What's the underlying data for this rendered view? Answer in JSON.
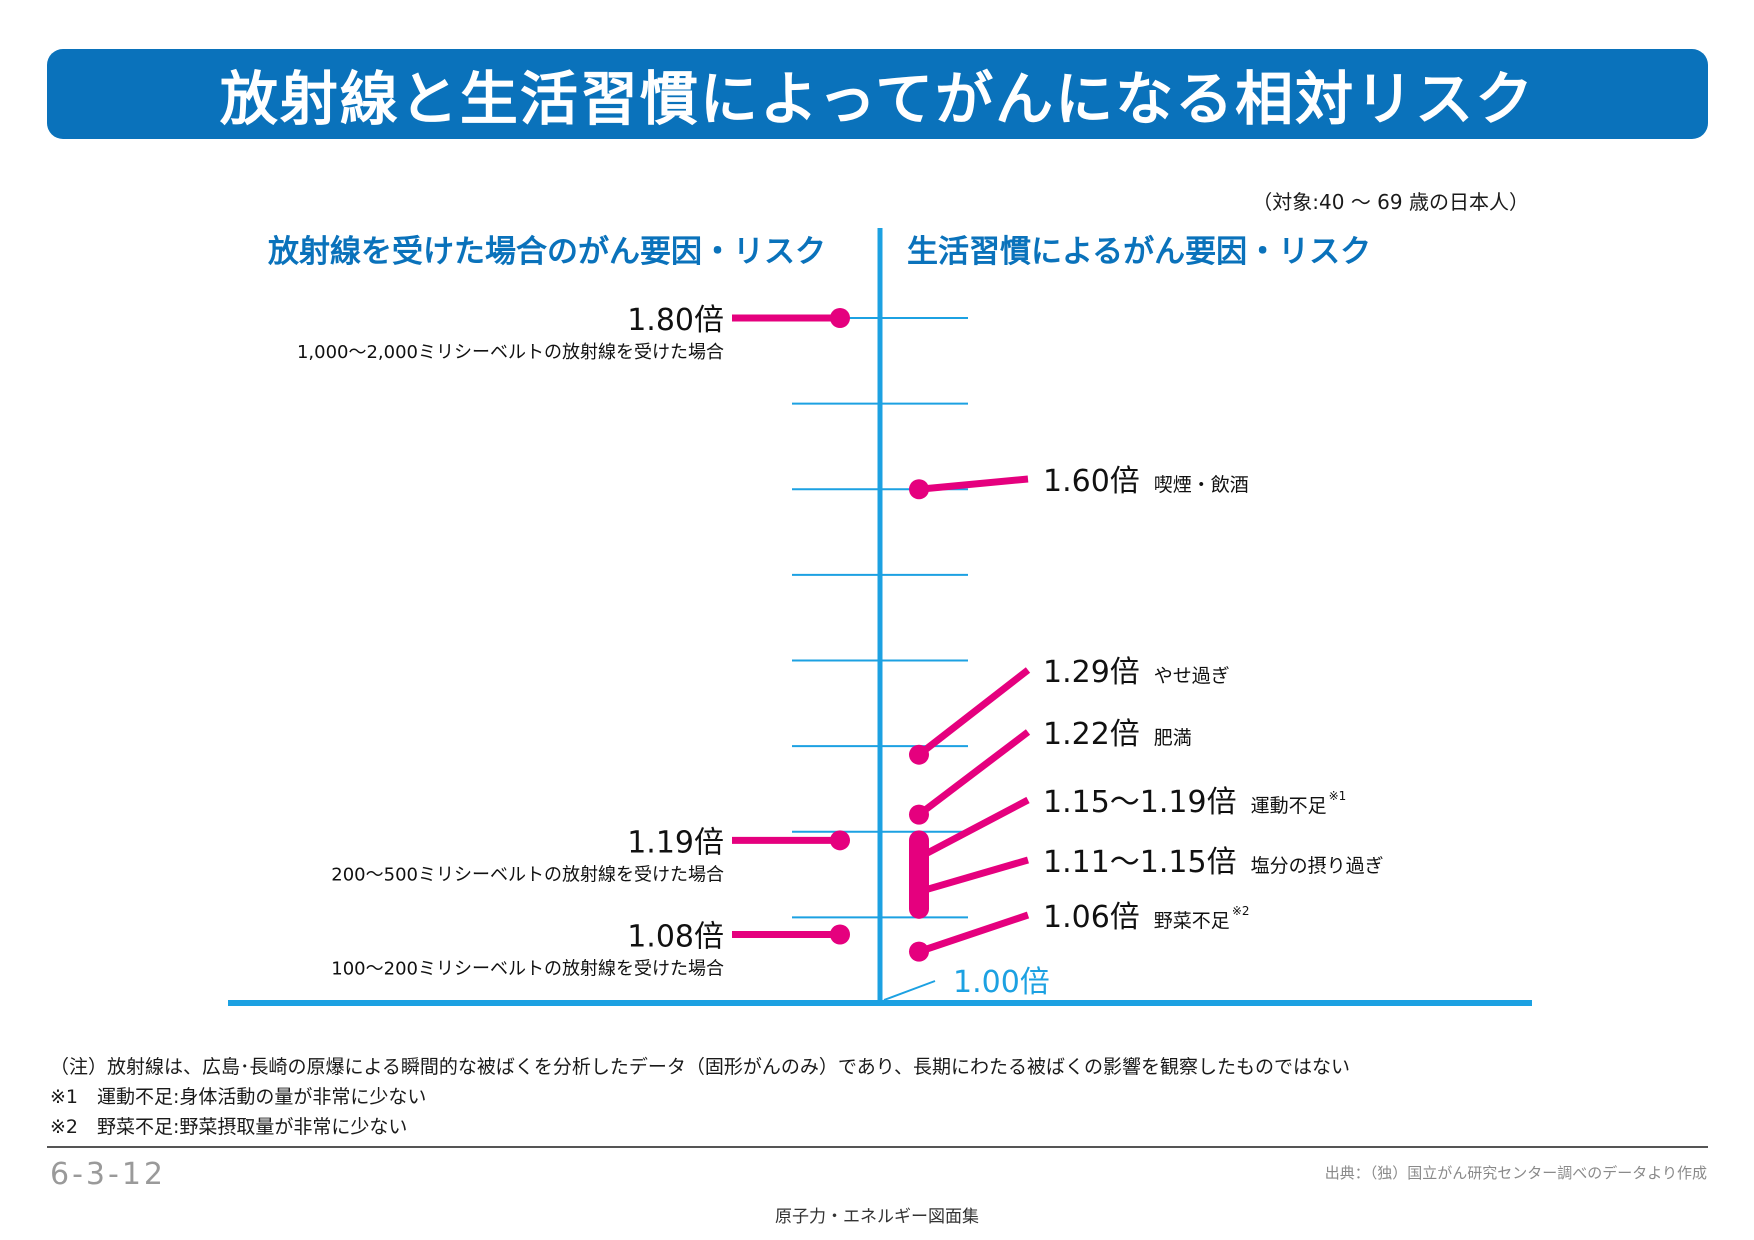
{
  "title": "放射線と生活習慣によってがんになる相対リスク",
  "subject_note": "（対象:40 ～ 69 歳の日本人）",
  "left_heading": "放射線を受けた場合のがん要因・リスク",
  "right_heading": "生活習慣によるがん要因・リスク",
  "colors": {
    "banner": "#0a72bb",
    "heading": "#0a72bb",
    "axis": "#1ca1e2",
    "marker": "#e5007e"
  },
  "chart_data": {
    "type": "lollipop",
    "baseline": {
      "value": 1.0,
      "label": "1.00倍"
    },
    "y_range": [
      1.0,
      1.8
    ],
    "grid_values": [
      1.1,
      1.2,
      1.3,
      1.4,
      1.5,
      1.6,
      1.7,
      1.8
    ],
    "radiation": [
      {
        "value": 1.8,
        "value_label": "1.80倍",
        "description": "1,000～2,000ミリシーベルトの放射線を受けた場合"
      },
      {
        "value": 1.19,
        "value_label": "1.19倍",
        "description": "200～500ミリシーベルトの放射線を受けた場合"
      },
      {
        "value": 1.08,
        "value_label": "1.08倍",
        "description": "100～200ミリシーベルトの放射線を受けた場合"
      }
    ],
    "lifestyle": [
      {
        "value": 1.6,
        "value_label": "1.60倍",
        "factor": "喫煙・飲酒"
      },
      {
        "value": 1.29,
        "value_label": "1.29倍",
        "factor": "やせ過ぎ"
      },
      {
        "value": 1.22,
        "value_label": "1.22倍",
        "factor": "肥満"
      },
      {
        "range": [
          1.15,
          1.19
        ],
        "value_label": "1.15～1.19倍",
        "factor": "運動不足",
        "note_mark": "※1"
      },
      {
        "range": [
          1.11,
          1.15
        ],
        "value_label": "1.11～1.15倍",
        "factor": "塩分の摂り過ぎ"
      },
      {
        "value": 1.06,
        "value_label": "1.06倍",
        "factor": "野菜不足",
        "note_mark": "※2"
      }
    ]
  },
  "notes": [
    "（注）放射線は、広島･長崎の原爆による瞬間的な被ばくを分析したデータ（固形がんのみ）であり、長期にわたる被ばくの影響を観察したものではない",
    "※1　運動不足:身体活動の量が非常に少ない",
    "※2　野菜不足:野菜摂取量が非常に少ない"
  ],
  "page_number": "6-3-12",
  "source": "出典：（独）国立がん研究センター調べのデータより作成",
  "collection": "原子力・エネルギー図面集"
}
